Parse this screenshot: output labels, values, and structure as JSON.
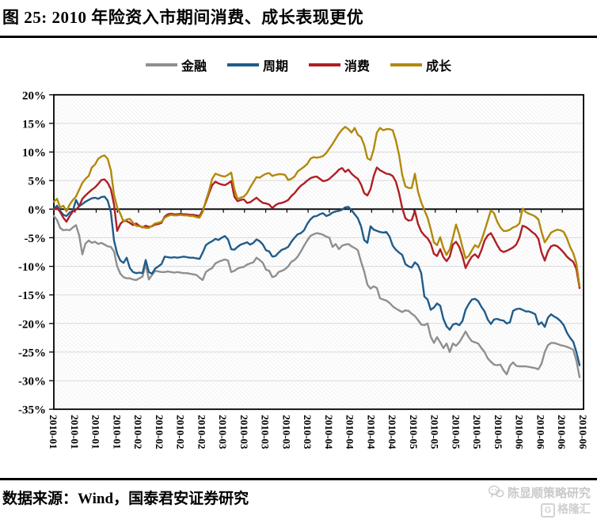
{
  "title": "图 25: 2010 年险资入市期间消费、成长表现更优",
  "source": "数据来源：Wind，国泰君安证券研究",
  "watermark": {
    "account": "陈显顺策略研究",
    "platform": "格隆汇",
    "platform_logo_letter": "G"
  },
  "legend": {
    "items": [
      {
        "key": "finance",
        "label": "金融",
        "color": "#8F8F8F"
      },
      {
        "key": "cyclical",
        "label": "周期",
        "color": "#1F5C8B"
      },
      {
        "key": "consumer",
        "label": "消费",
        "color": "#B01E24"
      },
      {
        "key": "growth",
        "label": "成长",
        "color": "#B1890B"
      }
    ]
  },
  "chart_data": {
    "type": "line",
    "title": "",
    "xlabel": "",
    "ylabel": "",
    "unit": "%",
    "ylim": [
      -35,
      20
    ],
    "y_step": 5,
    "grid": "horizontal",
    "legend_position": "top-center",
    "y_tick_labels": [
      "20%",
      "15%",
      "10%",
      "5%",
      "0%",
      "-5%",
      "-10%",
      "-15%",
      "-20%",
      "-25%",
      "-30%",
      "-35%"
    ],
    "x_tick_labels": [
      "2010-01",
      "2010-01",
      "2010-01",
      "2010-01",
      "2010-02",
      "2010-02",
      "2010-02",
      "2010-02",
      "2010-03",
      "2010-03",
      "2010-03",
      "2010-03",
      "2010-03",
      "2010-04",
      "2010-04",
      "2010-04",
      "2010-04",
      "2010-05",
      "2010-05",
      "2010-05",
      "2010-05",
      "2010-05",
      "2010-06",
      "2010-06",
      "2010-06",
      "2010-06"
    ],
    "x_note": "daily cumulative return, Jan 2010 - Jun 2010, values in percent",
    "series": [
      {
        "key": "finance",
        "name": "金融",
        "color": "#8F8F8F",
        "values": [
          -1.2,
          -1.9,
          -3.3,
          -3.7,
          -3.6,
          -3.7,
          -3.2,
          -2.8,
          -4.6,
          -7.9,
          -6.0,
          -5.5,
          -5.9,
          -5.7,
          -6.1,
          -5.9,
          -6.2,
          -6.5,
          -6.6,
          -7.4,
          -10.0,
          -11.3,
          -11.9,
          -12.1,
          -12.1,
          -12.3,
          -12.4,
          -12.1,
          -11.8,
          -9.6,
          -12.3,
          -11.5,
          -10.8,
          -10.9,
          -11.0,
          -11.0,
          -10.9,
          -11.0,
          -11.1,
          -11.0,
          -11.1,
          -11.2,
          -11.2,
          -11.3,
          -11.4,
          -11.5,
          -12.0,
          -12.4,
          -11.0,
          -10.6,
          -10.3,
          -9.5,
          -9.2,
          -9.0,
          -8.8,
          -9.0,
          -11.0,
          -10.8,
          -10.4,
          -10.2,
          -10.1,
          -9.7,
          -9.5,
          -9.3,
          -8.5,
          -8.9,
          -9.4,
          -10.6,
          -10.8,
          -11.9,
          -11.7,
          -11.0,
          -10.8,
          -10.5,
          -10.0,
          -9.2,
          -8.9,
          -8.3,
          -7.4,
          -6.4,
          -5.5,
          -4.7,
          -4.4,
          -4.2,
          -4.3,
          -4.5,
          -4.8,
          -5.0,
          -6.6,
          -6.1,
          -7.0,
          -6.4,
          -6.2,
          -6.1,
          -6.5,
          -6.8,
          -7.2,
          -9.2,
          -10.9,
          -13.2,
          -13.9,
          -13.5,
          -13.8,
          -15.6,
          -15.8,
          -16.0,
          -16.4,
          -17.0,
          -17.4,
          -17.7,
          -18.0,
          -17.7,
          -17.8,
          -18.3,
          -18.7,
          -19.4,
          -20.2,
          -20.3,
          -20.0,
          -22.3,
          -23.4,
          -22.4,
          -23.3,
          -24.3,
          -23.5,
          -25.0,
          -23.5,
          -23.9,
          -23.3,
          -22.4,
          -21.4,
          -22.4,
          -23.1,
          -23.3,
          -23.5,
          -24.3,
          -25.0,
          -26.1,
          -26.7,
          -27.2,
          -27.3,
          -27.2,
          -28.2,
          -28.9,
          -27.4,
          -26.8,
          -27.4,
          -27.5,
          -27.5,
          -27.5,
          -27.6,
          -27.7,
          -27.8,
          -28.0,
          -27.0,
          -25.0,
          -23.8,
          -23.4,
          -23.4,
          -23.6,
          -23.8,
          -23.9,
          -24.1,
          -24.3,
          -24.6,
          -26.5,
          -29.4
        ]
      },
      {
        "key": "cyclical",
        "name": "周期",
        "color": "#1F5C8B",
        "values": [
          0.1,
          0.6,
          -0.3,
          -1.0,
          -1.2,
          -0.6,
          -0.3,
          1.6,
          0.5,
          0.9,
          1.3,
          1.6,
          1.9,
          2.0,
          1.8,
          2.1,
          2.2,
          1.5,
          -0.5,
          -5.5,
          -7.8,
          -9.0,
          -9.4,
          -8.5,
          -10.3,
          -11.0,
          -11.2,
          -11.1,
          -11.2,
          -8.9,
          -11.0,
          -11.3,
          -10.4,
          -10.0,
          -9.6,
          -8.3,
          -8.4,
          -8.5,
          -8.4,
          -8.5,
          -8.4,
          -8.3,
          -8.4,
          -8.5,
          -8.5,
          -8.6,
          -8.7,
          -7.6,
          -6.3,
          -5.9,
          -5.6,
          -5.2,
          -5.4,
          -5.0,
          -4.7,
          -5.3,
          -7.0,
          -7.1,
          -6.6,
          -6.2,
          -6.0,
          -5.8,
          -6.2,
          -5.9,
          -5.3,
          -5.6,
          -6.2,
          -7.2,
          -7.4,
          -8.3,
          -8.2,
          -7.6,
          -7.1,
          -6.9,
          -6.6,
          -5.7,
          -5.0,
          -4.4,
          -4.2,
          -3.7,
          -2.6,
          -1.8,
          -1.3,
          -1.2,
          -0.9,
          -0.7,
          -1.2,
          -1.0,
          -0.6,
          -0.4,
          -0.3,
          -0.1,
          0.3,
          0.4,
          -0.2,
          -0.9,
          -1.6,
          -3.0,
          -5.4,
          -5.9,
          -3.0,
          -3.6,
          -3.8,
          -4.0,
          -4.1,
          -4.0,
          -4.8,
          -6.4,
          -7.1,
          -7.6,
          -8.0,
          -9.6,
          -10.0,
          -10.2,
          -9.3,
          -9.8,
          -11.2,
          -15.3,
          -15.8,
          -17.6,
          -17.2,
          -16.5,
          -16.9,
          -19.2,
          -20.5,
          -21.1,
          -20.2,
          -20.0,
          -20.3,
          -19.6,
          -17.6,
          -16.6,
          -15.8,
          -15.7,
          -16.1,
          -17.1,
          -17.9,
          -19.3,
          -20.1,
          -19.3,
          -19.2,
          -19.4,
          -19.5,
          -20.0,
          -19.8,
          -17.8,
          -17.5,
          -17.4,
          -17.6,
          -17.9,
          -17.9,
          -18.1,
          -18.4,
          -20.2,
          -19.8,
          -20.6,
          -19.0,
          -18.4,
          -18.8,
          -19.1,
          -19.6,
          -20.3,
          -21.6,
          -22.5,
          -23.2,
          -25.0,
          -27.3
        ]
      },
      {
        "key": "consumer",
        "name": "消费",
        "color": "#B01E24",
        "values": [
          -0.1,
          0.2,
          -0.5,
          -1.5,
          -2.2,
          -1.2,
          -0.4,
          -0.1,
          0.5,
          1.8,
          2.4,
          2.9,
          3.4,
          3.8,
          4.4,
          5.1,
          5.2,
          4.6,
          3.5,
          0.8,
          -3.8,
          -2.6,
          -2.0,
          -2.1,
          -2.4,
          -2.8,
          -2.5,
          -2.9,
          -3.2,
          -2.9,
          -3.1,
          -3.0,
          -2.7,
          -2.6,
          -2.4,
          -1.3,
          -0.9,
          -0.8,
          -0.9,
          -0.9,
          -0.8,
          -0.9,
          -0.9,
          -1.0,
          -1.0,
          -1.1,
          -1.2,
          -0.2,
          1.2,
          2.8,
          4.2,
          4.8,
          4.5,
          4.3,
          4.2,
          4.5,
          4.9,
          2.2,
          1.4,
          1.6,
          1.7,
          1.1,
          1.2,
          1.6,
          2.0,
          1.5,
          1.1,
          1.0,
          0.8,
          0.2,
          0.7,
          1.0,
          1.1,
          1.3,
          1.6,
          2.3,
          2.8,
          3.5,
          4.1,
          4.5,
          5.0,
          5.4,
          5.6,
          5.7,
          5.3,
          4.9,
          5.0,
          5.3,
          5.8,
          6.3,
          6.9,
          7.2,
          6.5,
          6.9,
          6.2,
          5.7,
          5.3,
          4.3,
          2.8,
          2.4,
          3.5,
          5.8,
          7.3,
          6.8,
          6.5,
          6.2,
          6.1,
          5.8,
          4.8,
          2.8,
          0.2,
          -1.6,
          -2.0,
          -1.9,
          -0.3,
          -2.6,
          -3.9,
          -4.6,
          -5.1,
          -6.0,
          -7.8,
          -8.2,
          -7.0,
          -8.4,
          -9.1,
          -8.3,
          -6.2,
          -5.7,
          -6.6,
          -8.2,
          -10.3,
          -9.2,
          -8.3,
          -7.9,
          -8.5,
          -7.2,
          -5.5,
          -4.6,
          -4.2,
          -5.2,
          -6.3,
          -7.2,
          -7.5,
          -7.3,
          -7.0,
          -6.7,
          -6.2,
          -5.0,
          -2.9,
          -3.1,
          -3.5,
          -4.0,
          -4.4,
          -5.2,
          -7.6,
          -9.0,
          -7.4,
          -6.5,
          -6.3,
          -6.5,
          -7.0,
          -7.6,
          -8.3,
          -8.8,
          -9.2,
          -10.5,
          -13.8
        ]
      },
      {
        "key": "growth",
        "name": "成长",
        "color": "#B1890B",
        "values": [
          1.3,
          1.8,
          0.3,
          0.6,
          -0.4,
          0.8,
          1.6,
          2.2,
          3.4,
          4.6,
          5.3,
          5.8,
          7.3,
          7.8,
          8.8,
          9.2,
          9.4,
          8.8,
          6.8,
          2.5,
          0.3,
          -0.8,
          -2.2,
          -1.8,
          -1.7,
          -2.4,
          -2.9,
          -3.0,
          -3.1,
          -3.3,
          -3.3,
          -2.9,
          -2.5,
          -2.4,
          -2.2,
          -1.5,
          -1.2,
          -1.0,
          -1.1,
          -1.1,
          -1.0,
          -1.1,
          -1.1,
          -1.2,
          -1.2,
          -1.4,
          -1.5,
          -0.5,
          1.5,
          3.2,
          5.3,
          6.2,
          6.0,
          5.8,
          5.7,
          6.0,
          6.4,
          3.5,
          1.8,
          2.0,
          2.2,
          2.8,
          3.8,
          4.7,
          5.6,
          5.5,
          5.9,
          6.2,
          6.3,
          5.8,
          6.0,
          6.1,
          6.1,
          6.0,
          5.1,
          5.3,
          5.7,
          6.6,
          7.0,
          7.4,
          7.9,
          8.8,
          9.1,
          9.0,
          9.1,
          9.3,
          9.8,
          10.6,
          11.4,
          12.3,
          13.2,
          13.9,
          14.4,
          14.0,
          13.4,
          14.2,
          13.0,
          12.6,
          11.2,
          8.9,
          8.6,
          10.5,
          13.4,
          14.2,
          13.8,
          14.0,
          14.0,
          13.8,
          12.0,
          9.5,
          6.0,
          4.0,
          3.7,
          3.7,
          6.2,
          3.0,
          1.2,
          -0.2,
          -1.5,
          -3.5,
          -5.8,
          -6.3,
          -4.9,
          -6.8,
          -8.0,
          -7.0,
          -5.0,
          -2.7,
          -4.4,
          -6.6,
          -8.6,
          -8.2,
          -7.2,
          -6.3,
          -6.7,
          -5.5,
          -3.8,
          -2.0,
          -0.2,
          -0.7,
          -2.2,
          -3.2,
          -3.8,
          -3.8,
          -3.6,
          -3.2,
          -3.0,
          -2.5,
          0.1,
          -0.5,
          -0.8,
          -1.0,
          -1.3,
          -1.8,
          -4.0,
          -5.8,
          -5.0,
          -4.1,
          -3.8,
          -3.6,
          -3.7,
          -4.0,
          -5.1,
          -6.6,
          -7.7,
          -9.5,
          -13.5
        ]
      }
    ]
  }
}
